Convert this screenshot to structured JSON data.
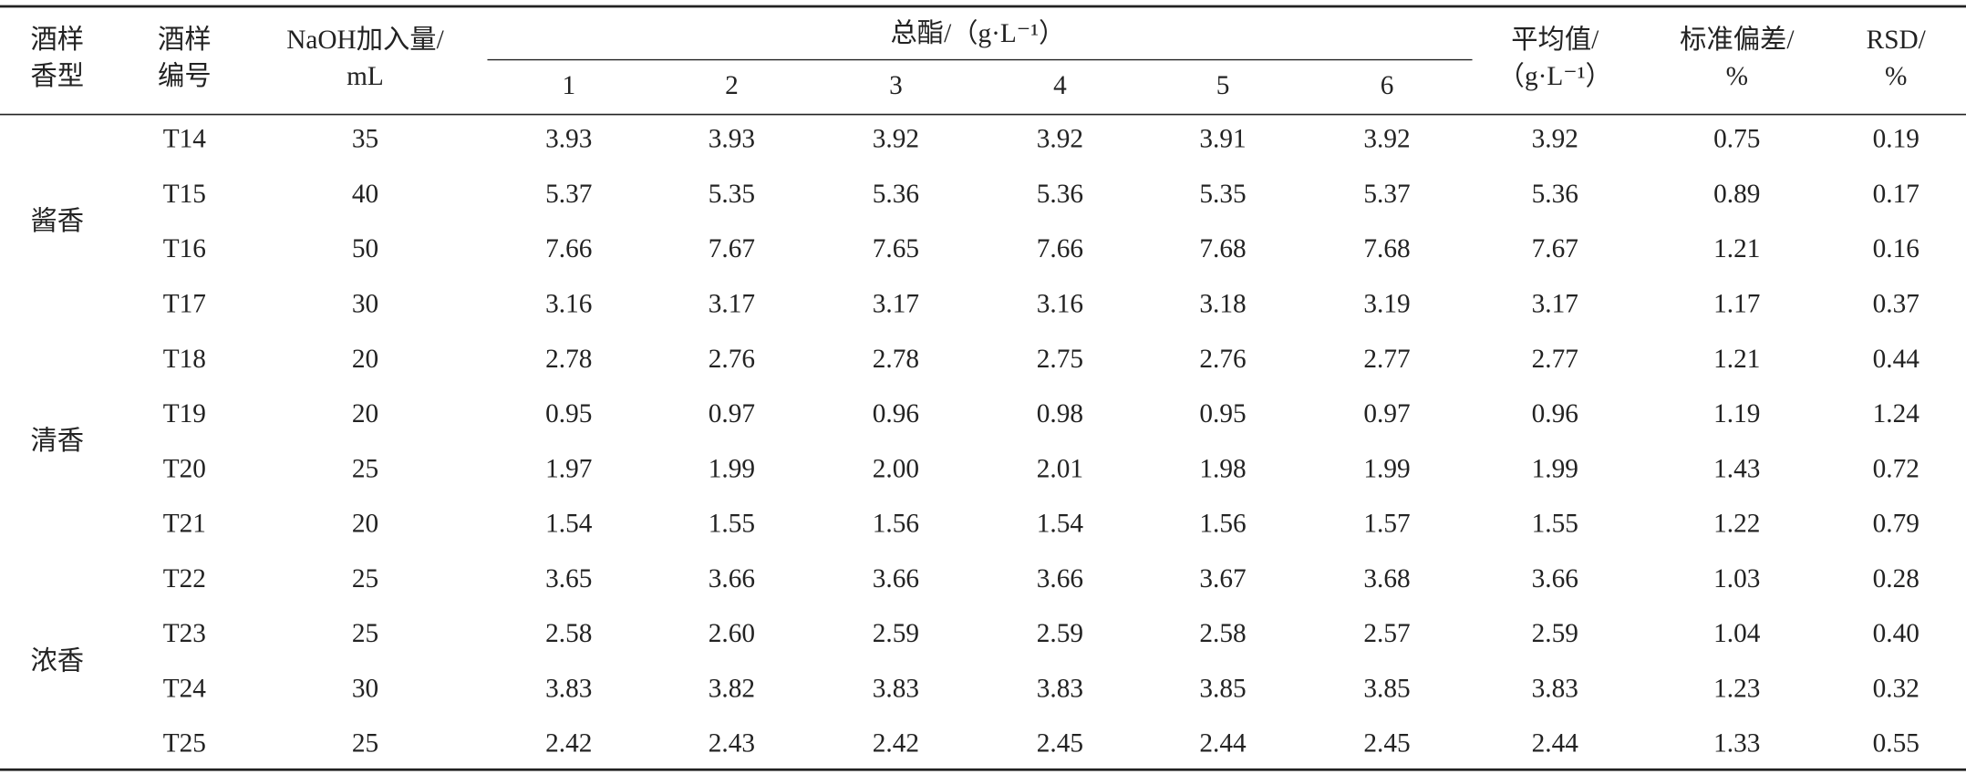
{
  "table": {
    "columns": [
      {
        "lines": [
          "酒样",
          "香型"
        ]
      },
      {
        "lines": [
          "酒样",
          "编号"
        ]
      },
      {
        "lines": [
          "NaOH加入量/",
          "mL"
        ]
      },
      {
        "group": "总酯/（g·L⁻¹）",
        "sub": [
          "1",
          "2",
          "3",
          "4",
          "5",
          "6"
        ]
      },
      {
        "lines": [
          "平均值/",
          "（g·L⁻¹）"
        ]
      },
      {
        "lines": [
          "标准偏差/",
          "%"
        ]
      },
      {
        "lines": [
          "RSD/",
          "%"
        ]
      }
    ],
    "groups": [
      {
        "name": "酱香",
        "rows": [
          [
            "T14",
            "35",
            "3.93",
            "3.93",
            "3.92",
            "3.92",
            "3.91",
            "3.92",
            "3.92",
            "0.75",
            "0.19"
          ],
          [
            "T15",
            "40",
            "5.37",
            "5.35",
            "5.36",
            "5.36",
            "5.35",
            "5.37",
            "5.36",
            "0.89",
            "0.17"
          ],
          [
            "T16",
            "50",
            "7.66",
            "7.67",
            "7.65",
            "7.66",
            "7.68",
            "7.68",
            "7.67",
            "1.21",
            "0.16"
          ],
          [
            "T17",
            "30",
            "3.16",
            "3.17",
            "3.17",
            "3.16",
            "3.18",
            "3.19",
            "3.17",
            "1.17",
            "0.37"
          ]
        ]
      },
      {
        "name": "清香",
        "rows": [
          [
            "T18",
            "20",
            "2.78",
            "2.76",
            "2.78",
            "2.75",
            "2.76",
            "2.77",
            "2.77",
            "1.21",
            "0.44"
          ],
          [
            "T19",
            "20",
            "0.95",
            "0.97",
            "0.96",
            "0.98",
            "0.95",
            "0.97",
            "0.96",
            "1.19",
            "1.24"
          ],
          [
            "T20",
            "25",
            "1.97",
            "1.99",
            "2.00",
            "2.01",
            "1.98",
            "1.99",
            "1.99",
            "1.43",
            "0.72"
          ],
          [
            "T21",
            "20",
            "1.54",
            "1.55",
            "1.56",
            "1.54",
            "1.56",
            "1.57",
            "1.55",
            "1.22",
            "0.79"
          ]
        ]
      },
      {
        "name": "浓香",
        "rows": [
          [
            "T22",
            "25",
            "3.65",
            "3.66",
            "3.66",
            "3.66",
            "3.67",
            "3.68",
            "3.66",
            "1.03",
            "0.28"
          ],
          [
            "T23",
            "25",
            "2.58",
            "2.60",
            "2.59",
            "2.59",
            "2.58",
            "2.57",
            "2.59",
            "1.04",
            "0.40"
          ],
          [
            "T24",
            "30",
            "3.83",
            "3.82",
            "3.83",
            "3.83",
            "3.85",
            "3.85",
            "3.83",
            "1.23",
            "0.32"
          ],
          [
            "T25",
            "25",
            "2.42",
            "2.43",
            "2.42",
            "2.45",
            "2.44",
            "2.45",
            "2.44",
            "1.33",
            "0.55"
          ]
        ]
      }
    ]
  }
}
